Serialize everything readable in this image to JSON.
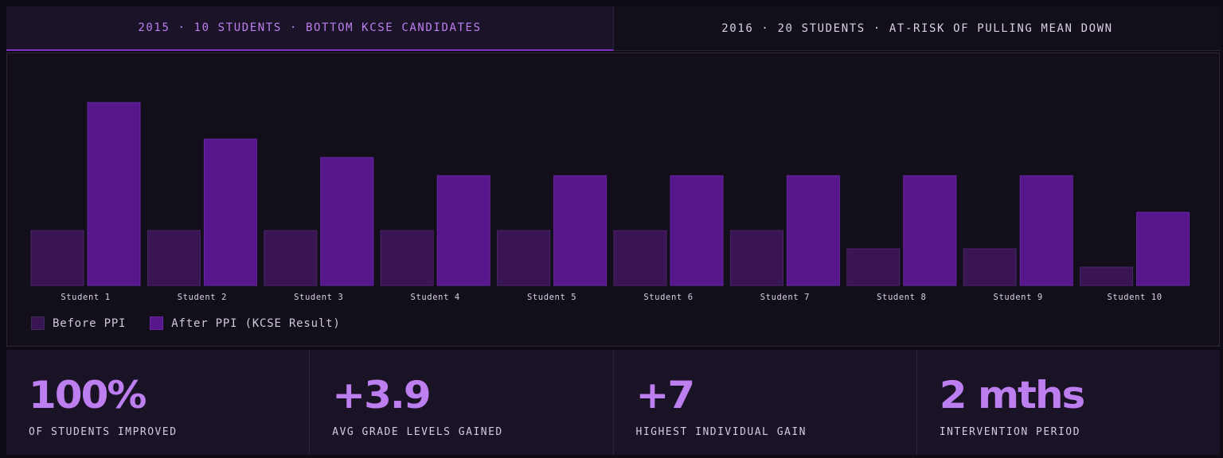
{
  "tabs": [
    {
      "label": "2015 · 10 STUDENTS · BOTTOM KCSE CANDIDATES",
      "active": true
    },
    {
      "label": "2016 · 20 STUDENTS · AT-RISK OF PULLING MEAN DOWN",
      "active": false
    }
  ],
  "colors": {
    "before": "#3a1554",
    "after": "#56168c",
    "accent": "#bd7ef0",
    "tick_text": "#d8d2e3"
  },
  "chart_data": {
    "type": "bar",
    "categories": [
      "Student 1",
      "Student 2",
      "Student 3",
      "Student 4",
      "Student 5",
      "Student 6",
      "Student 7",
      "Student 8",
      "Student 9",
      "Student 10"
    ],
    "series": [
      {
        "name": "Before PPI",
        "values": [
          3,
          3,
          3,
          3,
          3,
          3,
          3,
          2,
          2,
          1
        ]
      },
      {
        "name": "After PPI (KCSE Result)",
        "values": [
          10,
          8,
          7,
          6,
          6,
          6,
          6,
          6,
          6,
          4
        ]
      }
    ],
    "ylim": [
      0,
      10
    ],
    "grid": false,
    "legend_position": "bottom-left"
  },
  "legend": {
    "before_label": "Before PPI",
    "after_label": "After PPI (KCSE Result)"
  },
  "stats": [
    {
      "value": "100%",
      "label": "OF STUDENTS IMPROVED"
    },
    {
      "value": "+3.9",
      "label": "AVG GRADE LEVELS GAINED"
    },
    {
      "value": "+7",
      "label": "HIGHEST INDIVIDUAL GAIN"
    },
    {
      "value": "2 mths",
      "label": "INTERVENTION PERIOD"
    }
  ]
}
